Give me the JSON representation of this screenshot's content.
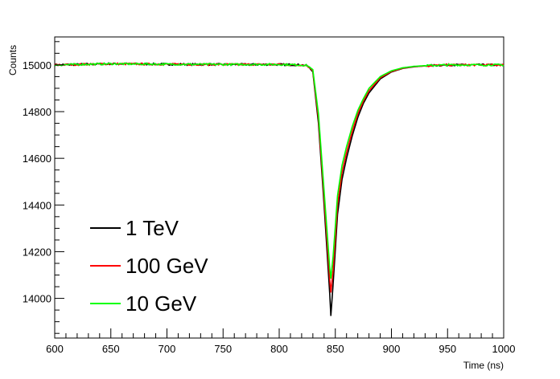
{
  "chart_data": {
    "type": "line",
    "title": "",
    "xlabel": "Time (ns)",
    "ylabel": "Counts",
    "xlim": [
      600,
      1000
    ],
    "ylim": [
      13830,
      15120
    ],
    "x_ticks": [
      600,
      650,
      700,
      750,
      800,
      850,
      900,
      950,
      1000
    ],
    "y_ticks": [
      14000,
      14200,
      14400,
      14600,
      14800,
      15000
    ],
    "grid": false,
    "legend_position": "bottom-left",
    "baseline": 15000,
    "series": [
      {
        "name": "1 TeV",
        "color": "#000000",
        "x": [
          600,
          650,
          700,
          750,
          800,
          820,
          825,
          830,
          835,
          840,
          845,
          846,
          848,
          852,
          856,
          860,
          865,
          870,
          875,
          880,
          890,
          900,
          910,
          920,
          930,
          950,
          1000
        ],
        "y": [
          15000,
          15005,
          15003,
          15002,
          15002,
          15000,
          14997,
          14970,
          14750,
          14400,
          14020,
          13925,
          14060,
          14360,
          14510,
          14600,
          14695,
          14775,
          14835,
          14880,
          14940,
          14970,
          14985,
          14992,
          14996,
          15000,
          15000
        ]
      },
      {
        "name": "100 GeV",
        "color": "#ff0000",
        "x": [
          600,
          650,
          700,
          750,
          800,
          820,
          825,
          830,
          835,
          840,
          845,
          846,
          848,
          852,
          856,
          860,
          865,
          870,
          875,
          880,
          890,
          900,
          910,
          920,
          930,
          950,
          1000
        ],
        "y": [
          15000,
          15005,
          15003,
          15002,
          15002,
          15000,
          14997,
          14975,
          14770,
          14430,
          14080,
          14025,
          14120,
          14400,
          14540,
          14625,
          14715,
          14790,
          14845,
          14890,
          14945,
          14972,
          14986,
          14993,
          14996,
          15000,
          15000
        ]
      },
      {
        "name": "10 GeV",
        "color": "#00ff00",
        "x": [
          600,
          650,
          700,
          750,
          800,
          820,
          825,
          830,
          835,
          840,
          845,
          846,
          848,
          852,
          856,
          860,
          865,
          870,
          875,
          880,
          890,
          900,
          910,
          920,
          930,
          950,
          1000
        ],
        "y": [
          15000,
          15005,
          15003,
          15002,
          15002,
          15000,
          14997,
          14980,
          14790,
          14460,
          14130,
          14085,
          14180,
          14440,
          14570,
          14650,
          14735,
          14805,
          14855,
          14900,
          14950,
          14975,
          14988,
          14994,
          14997,
          15000,
          15000
        ]
      }
    ]
  }
}
